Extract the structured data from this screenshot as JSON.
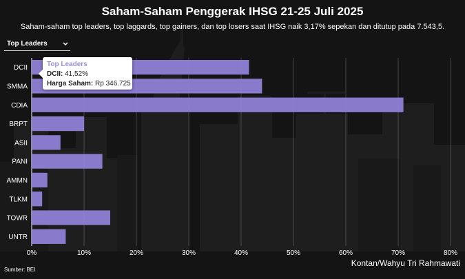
{
  "header": {
    "title": "Saham-Saham Penggerak IHSG 21-25 Juli 2025",
    "subtitle": "Saham-saham top leaders, top laggards, top gainers, dan top losers saat IHSG naik 3,17% sepekan dan ditutup pada 7.543,5."
  },
  "selector": {
    "selected": "Top Leaders"
  },
  "tooltip": {
    "title": "Top Leaders",
    "row1_key": "DCII:",
    "row1_val": "41,52%",
    "row2_key": "Harga Saham:",
    "row2_val": "Rp 346.725"
  },
  "footer": {
    "source": "Sumber: BEI",
    "credit": "Kontan/Wahyu Tri Rahmawati"
  },
  "colors": {
    "bar": "#8f7fd6",
    "text": "#ffffff",
    "background": "#141414"
  },
  "chart_data": {
    "type": "bar",
    "orientation": "horizontal",
    "categories": [
      "DCII",
      "SMMA",
      "CDIA",
      "BRPT",
      "ASII",
      "PANI",
      "AMMN",
      "TLKM",
      "TOWR",
      "UNTR"
    ],
    "values": [
      41.52,
      44,
      71,
      10,
      5.5,
      13.5,
      3,
      2,
      15,
      6.5
    ],
    "xlim": [
      0,
      80
    ],
    "xticks": [
      "0%",
      "10%",
      "20%",
      "30%",
      "40%",
      "50%",
      "60%",
      "70%",
      "80%"
    ],
    "grid": true
  }
}
